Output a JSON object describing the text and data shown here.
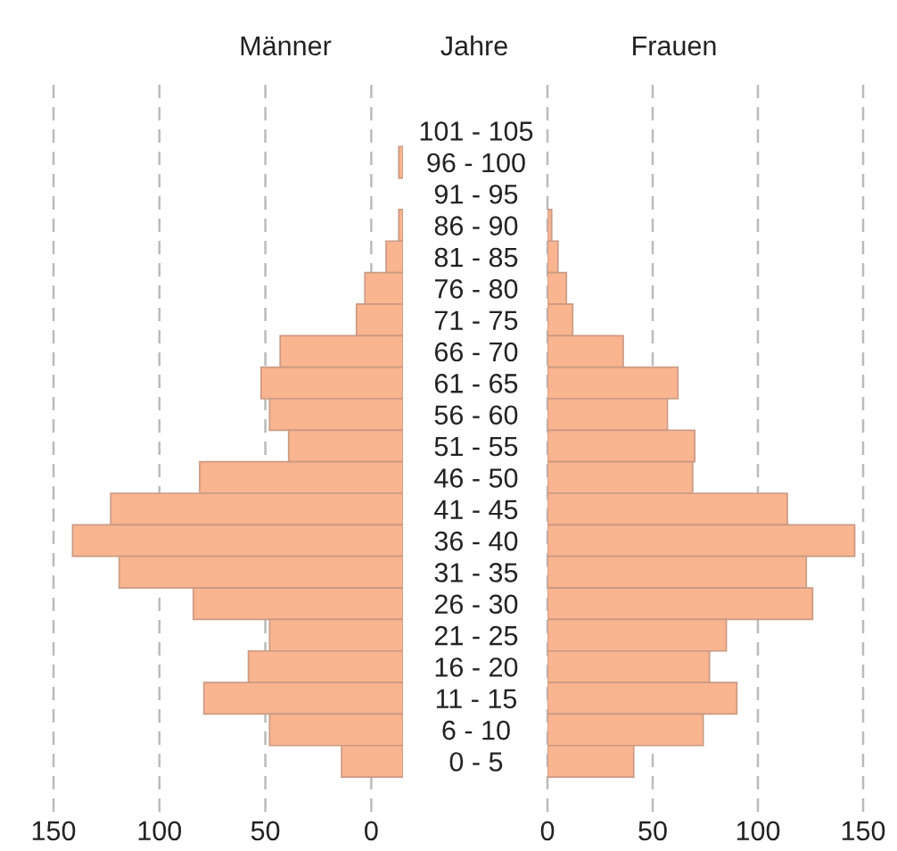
{
  "chart_data": [
    {
      "type": "bar",
      "orientation": "horizontal",
      "title": "Männer",
      "ylabel": "Jahre",
      "categories": [
        "101 - 105",
        "96 - 100",
        "91 - 95",
        "86 - 90",
        "81 - 85",
        "76 - 80",
        "71 - 75",
        "66 - 70",
        "61 - 65",
        "56 - 60",
        "51 - 55",
        "46 - 50",
        "41 - 45",
        "36 - 40",
        "31 - 35",
        "26 - 30",
        "21 - 25",
        "16 - 20",
        "11 - 15",
        "6 - 10",
        "0 - 5"
      ],
      "values": [
        null,
        2,
        null,
        2,
        8,
        18,
        22,
        58,
        67,
        63,
        54,
        96,
        138,
        156,
        134,
        99,
        63,
        73,
        94,
        63,
        29
      ],
      "base": [
        null,
        -15,
        null,
        -15,
        -15,
        -15,
        -15,
        -15,
        -15,
        -15,
        -15,
        -15,
        -15,
        -15,
        -15,
        -15,
        -15,
        -15,
        -15,
        -15,
        -15
      ],
      "color": "#f9b490",
      "xlim": [
        150,
        -15
      ],
      "xticks": [
        150,
        100,
        50,
        0
      ],
      "grid": "x"
    },
    {
      "type": "bar",
      "orientation": "horizontal",
      "title": "Frauen",
      "tick_labels": "x",
      "categories": [
        null,
        null,
        null,
        null,
        null,
        null,
        null,
        null,
        null,
        null,
        null,
        null,
        null,
        null,
        null,
        null,
        null,
        null,
        null,
        null,
        null
      ],
      "values": [
        null,
        null,
        null,
        2,
        5,
        9,
        12,
        36,
        62,
        57,
        70,
        69,
        114,
        146,
        123,
        126,
        85,
        77,
        90,
        74,
        41
      ],
      "color": "#f9b490",
      "xlim": [
        0,
        150
      ],
      "xticks": [
        0,
        50,
        100,
        150
      ],
      "grid": "x"
    }
  ]
}
